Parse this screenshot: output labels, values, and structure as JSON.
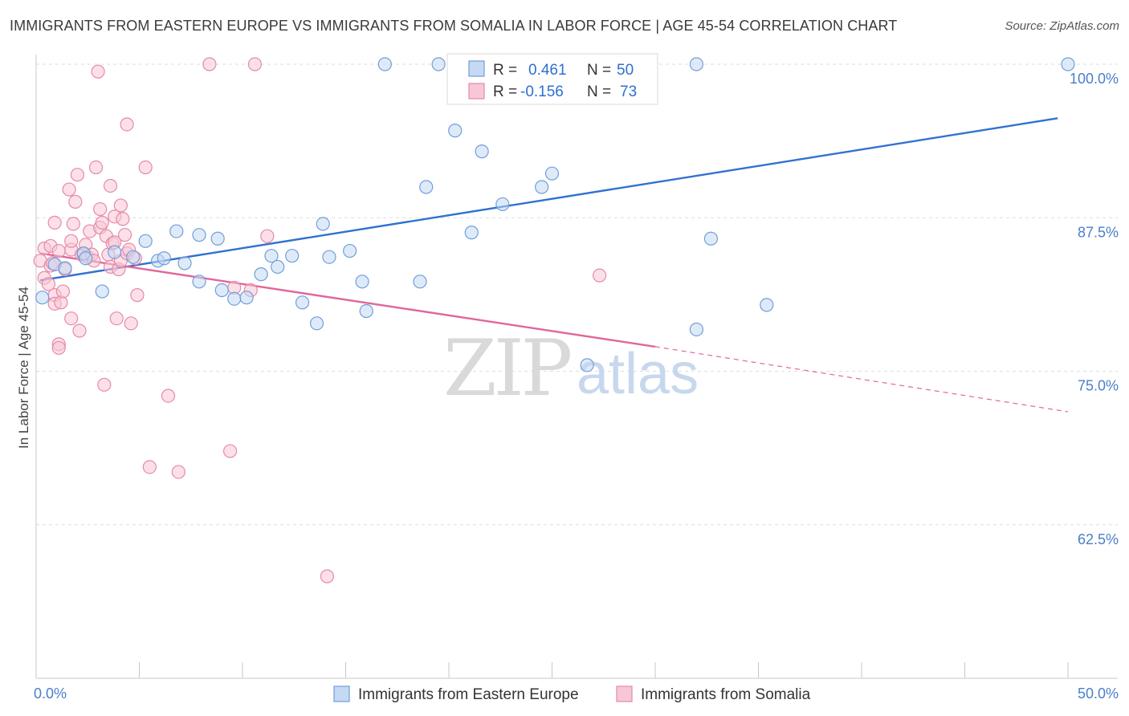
{
  "header": {
    "title": "IMMIGRANTS FROM EASTERN EUROPE VS IMMIGRANTS FROM SOMALIA IN LABOR FORCE | AGE 45-54 CORRELATION CHART",
    "source": "Source: ZipAtlas.com"
  },
  "watermark": {
    "zip": "ZIP",
    "atlas": "atlas"
  },
  "colors": {
    "blue_fill": "#c5d8f4",
    "blue_stroke": "#6f9fd9",
    "blue_line": "#2f72d0",
    "pink_fill": "#f7c7d6",
    "pink_stroke": "#e68aa8",
    "pink_line": "#e0679a",
    "grid": "#dedede",
    "tick_text": "#4a7fc9"
  },
  "legend": {
    "rows": [
      {
        "r_label": "R =",
        "r_value": "0.461",
        "n_label": "N =",
        "n_value": "50"
      },
      {
        "r_label": "R =",
        "r_value": "-0.156",
        "n_label": "N =",
        "n_value": "73"
      }
    ]
  },
  "chart_data": {
    "type": "scatter",
    "xlabel": "",
    "ylabel": "In Labor Force | Age 45-54",
    "xlim": [
      0,
      50
    ],
    "ylim": [
      50,
      100
    ],
    "x_tick_labels": [
      "0.0%",
      "50.0%"
    ],
    "y_ticks": [
      62.5,
      75.0,
      87.5,
      100.0
    ],
    "y_tick_labels": [
      "62.5%",
      "75.0%",
      "87.5%",
      "100.0%"
    ],
    "grid": true,
    "legend_position": "top-center",
    "series": [
      {
        "name": "Immigrants from Eastern Europe",
        "color": "#6f9fd9",
        "trend": {
          "x": [
            0.2,
            49.5
          ],
          "y": [
            82.4,
            95.6
          ]
        },
        "points": [
          [
            0.3,
            81.0
          ],
          [
            0.9,
            83.7
          ],
          [
            1.4,
            83.4
          ],
          [
            2.3,
            84.6
          ],
          [
            2.4,
            84.2
          ],
          [
            3.2,
            81.5
          ],
          [
            3.8,
            84.7
          ],
          [
            4.7,
            84.3
          ],
          [
            5.3,
            85.6
          ],
          [
            5.9,
            84.0
          ],
          [
            6.2,
            84.2
          ],
          [
            6.8,
            86.4
          ],
          [
            7.2,
            83.8
          ],
          [
            7.9,
            82.3
          ],
          [
            7.9,
            86.1
          ],
          [
            8.8,
            85.8
          ],
          [
            9.0,
            81.6
          ],
          [
            9.6,
            80.9
          ],
          [
            10.2,
            81.0
          ],
          [
            10.9,
            82.9
          ],
          [
            11.4,
            84.4
          ],
          [
            11.7,
            83.5
          ],
          [
            12.4,
            84.4
          ],
          [
            12.9,
            80.6
          ],
          [
            13.6,
            78.9
          ],
          [
            13.9,
            87.0
          ],
          [
            14.2,
            84.3
          ],
          [
            15.2,
            84.8
          ],
          [
            15.8,
            82.3
          ],
          [
            16.0,
            79.9
          ],
          [
            16.9,
            100.0
          ],
          [
            18.6,
            82.3
          ],
          [
            18.9,
            90.0
          ],
          [
            19.5,
            100.0
          ],
          [
            20.3,
            94.6
          ],
          [
            21.1,
            86.3
          ],
          [
            21.6,
            92.9
          ],
          [
            22.6,
            88.6
          ],
          [
            24.5,
            90.0
          ],
          [
            25.0,
            91.1
          ],
          [
            26.7,
            75.5
          ],
          [
            26.8,
            100.0
          ],
          [
            29.3,
            100.0
          ],
          [
            32.0,
            100.0
          ],
          [
            32.0,
            78.4
          ],
          [
            32.7,
            85.8
          ],
          [
            35.4,
            80.4
          ],
          [
            50.0,
            100.0
          ]
        ]
      },
      {
        "name": "Immigrants from Somalia",
        "color": "#e68aa8",
        "trend": {
          "x": [
            0.2,
            30.0
          ],
          "y": [
            84.6,
            77.0
          ]
        },
        "trend_dashed": {
          "x": [
            30.0,
            50.0
          ],
          "y": [
            77.0,
            71.7
          ]
        },
        "points": [
          [
            0.2,
            84.0
          ],
          [
            0.4,
            82.6
          ],
          [
            0.4,
            85.0
          ],
          [
            0.6,
            82.1
          ],
          [
            0.7,
            85.2
          ],
          [
            0.7,
            83.6
          ],
          [
            0.8,
            83.8
          ],
          [
            0.9,
            81.2
          ],
          [
            0.9,
            80.5
          ],
          [
            0.9,
            87.1
          ],
          [
            1.1,
            84.8
          ],
          [
            1.1,
            77.2
          ],
          [
            1.1,
            76.9
          ],
          [
            1.2,
            80.6
          ],
          [
            1.3,
            81.5
          ],
          [
            1.4,
            83.3
          ],
          [
            1.6,
            89.8
          ],
          [
            1.7,
            84.9
          ],
          [
            1.7,
            85.6
          ],
          [
            1.7,
            79.3
          ],
          [
            1.8,
            87.0
          ],
          [
            1.9,
            88.8
          ],
          [
            2.0,
            91.0
          ],
          [
            2.1,
            78.3
          ],
          [
            2.2,
            84.5
          ],
          [
            2.3,
            84.5
          ],
          [
            2.4,
            85.3
          ],
          [
            2.5,
            84.3
          ],
          [
            2.6,
            86.4
          ],
          [
            2.7,
            84.5
          ],
          [
            2.8,
            84.0
          ],
          [
            2.9,
            91.6
          ],
          [
            3.0,
            99.4
          ],
          [
            3.1,
            88.2
          ],
          [
            3.1,
            86.7
          ],
          [
            3.2,
            87.1
          ],
          [
            3.3,
            73.9
          ],
          [
            3.4,
            86.0
          ],
          [
            3.5,
            84.5
          ],
          [
            3.6,
            90.1
          ],
          [
            3.6,
            83.5
          ],
          [
            3.7,
            85.4
          ],
          [
            3.8,
            85.5
          ],
          [
            3.8,
            87.6
          ],
          [
            3.9,
            79.3
          ],
          [
            4.0,
            83.3
          ],
          [
            4.1,
            84.0
          ],
          [
            4.1,
            88.5
          ],
          [
            4.2,
            87.4
          ],
          [
            4.3,
            86.1
          ],
          [
            4.4,
            95.1
          ],
          [
            4.4,
            84.6
          ],
          [
            4.5,
            84.9
          ],
          [
            4.6,
            78.9
          ],
          [
            4.8,
            84.2
          ],
          [
            4.9,
            81.2
          ],
          [
            5.3,
            91.6
          ],
          [
            5.5,
            67.2
          ],
          [
            6.4,
            73.0
          ],
          [
            6.9,
            66.8
          ],
          [
            8.4,
            100.0
          ],
          [
            9.4,
            68.5
          ],
          [
            9.6,
            81.8
          ],
          [
            10.4,
            81.6
          ],
          [
            10.6,
            100.0
          ],
          [
            11.2,
            86.0
          ],
          [
            14.1,
            58.3
          ],
          [
            27.3,
            82.8
          ]
        ]
      }
    ]
  }
}
